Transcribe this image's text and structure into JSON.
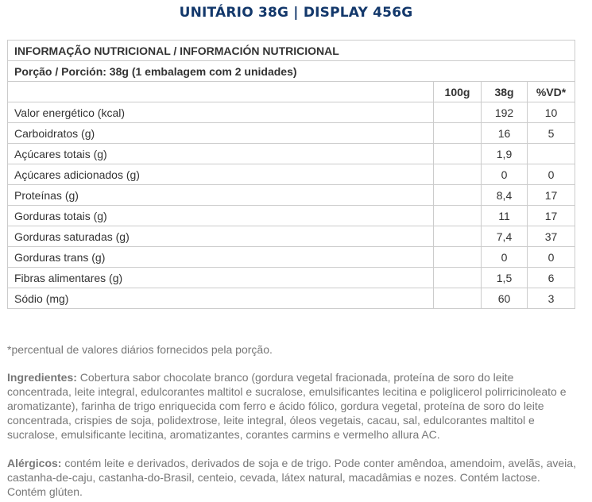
{
  "title": "UNITÁRIO 38G  |  DISPLAY 456G",
  "table": {
    "heading": "INFORMAÇÃO NUTRICIONAL / INFORMACIÓN NUTRICIONAL",
    "portion": "Porção / Porción: 38g (1 embalagem com 2 unidades)",
    "columns": [
      "100g",
      "38g",
      "%VD*"
    ],
    "rows": [
      {
        "label": "Valor energético (kcal)",
        "c100": "",
        "c38": "192",
        "vd": "10"
      },
      {
        "label": "Carboidratos (g)",
        "c100": "",
        "c38": "16",
        "vd": "5"
      },
      {
        "label": "Açúcares totais (g)",
        "c100": "",
        "c38": "1,9",
        "vd": ""
      },
      {
        "label": "Açúcares adicionados (g)",
        "c100": "",
        "c38": "0",
        "vd": "0"
      },
      {
        "label": "Proteínas (g)",
        "c100": "",
        "c38": "8,4",
        "vd": "17"
      },
      {
        "label": "Gorduras totais (g)",
        "c100": "",
        "c38": "11",
        "vd": "17"
      },
      {
        "label": "Gorduras saturadas (g)",
        "c100": "",
        "c38": "7,4",
        "vd": "37"
      },
      {
        "label": "Gorduras trans (g)",
        "c100": "",
        "c38": "0",
        "vd": "0"
      },
      {
        "label": "Fibras alimentares (g)",
        "c100": "",
        "c38": "1,5",
        "vd": "6"
      },
      {
        "label": "Sódio (mg)",
        "c100": "",
        "c38": "60",
        "vd": "3"
      }
    ]
  },
  "footnote": "*percentual de valores diários fornecidos pela porção.",
  "ingredients": {
    "label": "Ingredientes:",
    "text": " Cobertura sabor chocolate branco (gordura vegetal fracionada, proteína de soro do leite concentrada, leite integral, edulcorantes maltitol e sucralose, emulsificantes lecitina e poliglicerol polirricinoleato e aromatizante), farinha de trigo enriquecida com ferro e ácido fólico, gordura vegetal, proteína de soro do leite concentrada, crispies de soja, polidextrose, leite integral, óleos vegetais, cacau, sal, edulcorantes maltitol e sucralose, emulsificante lecitina, aromatizantes, corantes carmins e vermelho allura AC."
  },
  "allergens": {
    "label": "Alérgicos:",
    "text": " contém leite e derivados, derivados de soja e de trigo. Pode conter amêndoa, amendoim, avelãs, aveia, castanha-de-caju, castanha-do-Brasil, centeio, cevada, látex natural, macadâmias e nozes. Contém lactose. Contém glúten."
  }
}
